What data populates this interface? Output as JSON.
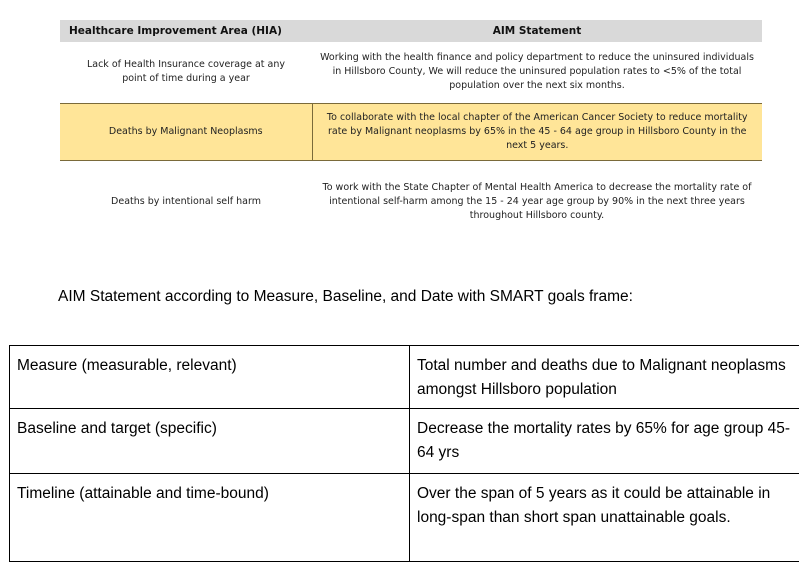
{
  "hia_table": {
    "headers": [
      "Healthcare Improvement Area (HIA)",
      "AIM Statement"
    ],
    "rows": [
      {
        "area": "Lack of Health Insurance coverage at any point of time during a year",
        "aim": "Working with the health finance and policy department to reduce the uninsured individuals in Hillsboro County,  We will reduce the uninsured population rates to <5% of the total population over the next six months."
      },
      {
        "area": "Deaths by Malignant Neoplasms",
        "aim": "To collaborate with the local chapter of the American Cancer Society to reduce mortality rate by Malignant neoplasms by 65% in the 45 - 64 age group in Hillsboro County in the next 5 years."
      },
      {
        "area": "Deaths by intentional self harm",
        "aim": "To work with the State Chapter of Mental Health America to decrease the mortality rate of intentional self-harm among the 15 - 24 year age group by 90% in the next three years throughout Hillsboro county."
      }
    ],
    "highlight_color": "#ffe598",
    "header_color": "#d9d9d9"
  },
  "caption": "AIM Statement according to Measure, Baseline, and Date with SMART goals frame:",
  "smart_table": {
    "rows": [
      {
        "label": "Measure (measurable, relevant)",
        "value": "Total number and deaths due to Malignant neoplasms amongst Hillsboro population"
      },
      {
        "label": "Baseline and target (specific)",
        "value": "Decrease the mortality rates by 65% for age group 45-64 yrs"
      },
      {
        "label": "Timeline (attainable and time-bound)",
        "value": "Over the span of 5 years as it could be attainable in long-span than short span unattainable goals."
      }
    ]
  }
}
